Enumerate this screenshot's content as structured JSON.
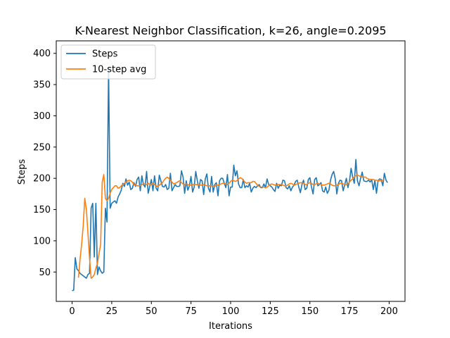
{
  "chart_data": {
    "type": "line",
    "title": "K-Nearest Neighbor Classification, k=26, angle=0.2095",
    "xlabel": "Iterations",
    "ylabel": "Steps",
    "xlim": [
      -10,
      210
    ],
    "ylim": [
      3,
      420
    ],
    "xticks": [
      0,
      25,
      50,
      75,
      100,
      125,
      150,
      175,
      200
    ],
    "yticks": [
      50,
      100,
      150,
      200,
      250,
      300,
      350,
      400
    ],
    "grid": false,
    "legend": "top-left",
    "series": [
      {
        "name": "Steps",
        "color": "#1f77b4",
        "x_start": 0,
        "values": [
          20,
          21,
          73,
          55,
          52,
          48,
          46,
          44,
          42,
          40,
          46,
          48,
          152,
          160,
          74,
          160,
          46,
          58,
          52,
          48,
          50,
          152,
          130,
          378,
          152,
          160,
          162,
          164,
          160,
          170,
          175,
          181,
          192,
          187,
          199,
          189,
          194,
          182,
          184,
          193,
          187,
          198,
          202,
          180,
          204,
          190,
          186,
          211,
          176,
          187,
          198,
          180,
          204,
          184,
          180,
          205,
          196,
          187,
          186,
          190,
          182,
          184,
          208,
          180,
          185,
          190,
          187,
          187,
          188,
          212,
          202,
          176,
          196,
          181,
          188,
          203,
          178,
          186,
          211,
          196,
          184,
          198,
          196,
          174,
          199,
          207,
          184,
          178,
          203,
          178,
          190,
          193,
          172,
          196,
          200,
          200,
          192,
          185,
          206,
          172,
          186,
          186,
          221,
          204,
          212,
          191,
          185,
          185,
          198,
          185,
          188,
          186,
          192,
          178,
          184,
          187,
          185,
          188,
          190,
          185,
          185,
          191,
          185,
          199,
          190,
          188,
          186,
          182,
          179,
          192,
          184,
          189,
          188,
          197,
          196,
          185,
          183,
          188,
          180,
          186,
          189,
          195,
          197,
          186,
          177,
          190,
          197,
          182,
          184,
          198,
          201,
          186,
          175,
          198,
          201,
          188,
          190,
          193,
          180,
          178,
          186,
          176,
          181,
          197,
          206,
          211,
          199,
          175,
          192,
          197,
          196,
          180,
          190,
          200,
          185,
          196,
          216,
          202,
          192,
          230,
          196,
          188,
          200,
          210,
          196,
          195,
          195,
          197,
          194,
          198,
          182,
          197,
          176,
          196,
          199,
          198,
          188,
          208,
          197,
          193
        ]
      },
      {
        "name": "10-step avg",
        "color": "#ff7f0e",
        "x_start": 4,
        "values": [
          41,
          70,
          94,
          124,
          168,
          150,
          112,
          72,
          40,
          42,
          46,
          56,
          64,
          80,
          94,
          194,
          206,
          168,
          164,
          168,
          176,
          182,
          185,
          188,
          188,
          184,
          185,
          188,
          190,
          192,
          194,
          196,
          197,
          196,
          194,
          190,
          189,
          188,
          188,
          188,
          190,
          191,
          191,
          190,
          192,
          190,
          190,
          192,
          190,
          188,
          187,
          189,
          191,
          193,
          197,
          200,
          202,
          200,
          197,
          194,
          191,
          192,
          193,
          195,
          196,
          193,
          191,
          190,
          191,
          190,
          189,
          189,
          190,
          190,
          190,
          190,
          189,
          189,
          189,
          190,
          189,
          188,
          188,
          188,
          188,
          188,
          187,
          189,
          189,
          190,
          191,
          192,
          192,
          191,
          190,
          192,
          195,
          197,
          196,
          195,
          196,
          199,
          201,
          200,
          197,
          194,
          192,
          193,
          193,
          193,
          195,
          195,
          192,
          189,
          187,
          186,
          186,
          186,
          185,
          186,
          188,
          190,
          191,
          190,
          189,
          189,
          190,
          190,
          190,
          189,
          188,
          188,
          189,
          191,
          192,
          191,
          189,
          190,
          191,
          192,
          193,
          193,
          192,
          190,
          190,
          192,
          193,
          192,
          190,
          190,
          191,
          192,
          191,
          190,
          189,
          189,
          190,
          191,
          192,
          191,
          189,
          188,
          188,
          189,
          190,
          192,
          192,
          191,
          190,
          190,
          191,
          194,
          197,
          199,
          202,
          204,
          205,
          204,
          203,
          202,
          202,
          202,
          200,
          199,
          198,
          198,
          198,
          197,
          197,
          196,
          196,
          196,
          197,
          198
        ]
      }
    ]
  }
}
